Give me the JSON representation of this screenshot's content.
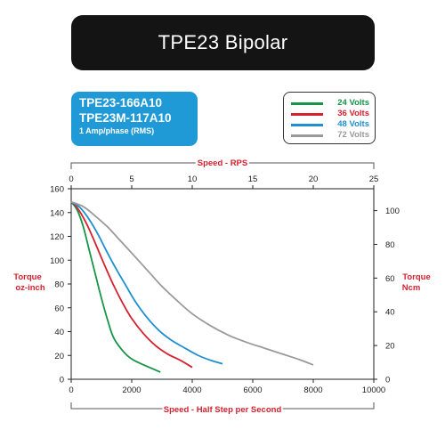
{
  "title": "TPE23 Bipolar",
  "model": {
    "line1": "TPE23-166A10",
    "line2": "TPE23M-117A10",
    "line3": "1 Amp/phase (RMS)"
  },
  "colors": {
    "title_bg": "#141414",
    "model_bg": "#1f9ad6",
    "green": "#159447",
    "red": "#d6202f",
    "blue": "#1d8fd0",
    "gray": "#9a9a9a"
  },
  "chart_data": {
    "type": "line",
    "top_axis_label": "Speed - RPS",
    "bottom_axis_label": "Speed - Half Step per Second",
    "left_axis_label": [
      "Torque",
      "oz-inch"
    ],
    "right_axis_label": [
      "Torque",
      "Ncm"
    ],
    "xlim": [
      0,
      10000
    ],
    "x_ticks": [
      "0",
      "2000",
      "4000",
      "6000",
      "8000",
      "10000"
    ],
    "top_xlim": [
      0,
      25
    ],
    "top_ticks": [
      "0",
      "5",
      "10",
      "15",
      "20",
      "25"
    ],
    "ylim": [
      0,
      160
    ],
    "y_ticks": [
      "0",
      "20",
      "40",
      "60",
      "80",
      "100",
      "120",
      "140",
      "160"
    ],
    "right_ticks": [
      "0",
      "20",
      "40",
      "60",
      "80",
      "100"
    ],
    "grid": false,
    "legend_position": "top-right",
    "series": [
      {
        "name": "24 Volts",
        "color": "#159447",
        "x": [
          0,
          200,
          400,
          600,
          800,
          1000,
          1200,
          1400,
          1700,
          2000,
          2400,
          2950
        ],
        "y": [
          149,
          142,
          128,
          108,
          88,
          68,
          50,
          35,
          24,
          17,
          12,
          6
        ]
      },
      {
        "name": "36 Volts",
        "color": "#d6202f",
        "x": [
          0,
          200,
          500,
          800,
          1100,
          1400,
          1700,
          2000,
          2400,
          2800,
          3200,
          3600,
          4000
        ],
        "y": [
          149,
          144,
          131,
          114,
          96,
          79,
          64,
          51,
          38,
          28,
          21,
          16,
          10
        ]
      },
      {
        "name": "48 Volts",
        "color": "#1d8fd0",
        "x": [
          0,
          300,
          600,
          900,
          1200,
          1500,
          1800,
          2100,
          2500,
          2900,
          3300,
          3700,
          4200,
          4600,
          5000
        ],
        "y": [
          149,
          144,
          134,
          121,
          106,
          92,
          79,
          66,
          52,
          41,
          33,
          27,
          20,
          16,
          13
        ]
      },
      {
        "name": "72 Volts",
        "color": "#9a9a9a",
        "x": [
          0,
          400,
          800,
          1200,
          1600,
          2000,
          2500,
          3000,
          3500,
          4000,
          4600,
          5200,
          5800,
          6400,
          7000,
          7600,
          8000
        ],
        "y": [
          149,
          145,
          137,
          128,
          117,
          106,
          92,
          78,
          66,
          55,
          45,
          37,
          31,
          26,
          21,
          16,
          12
        ]
      }
    ]
  }
}
